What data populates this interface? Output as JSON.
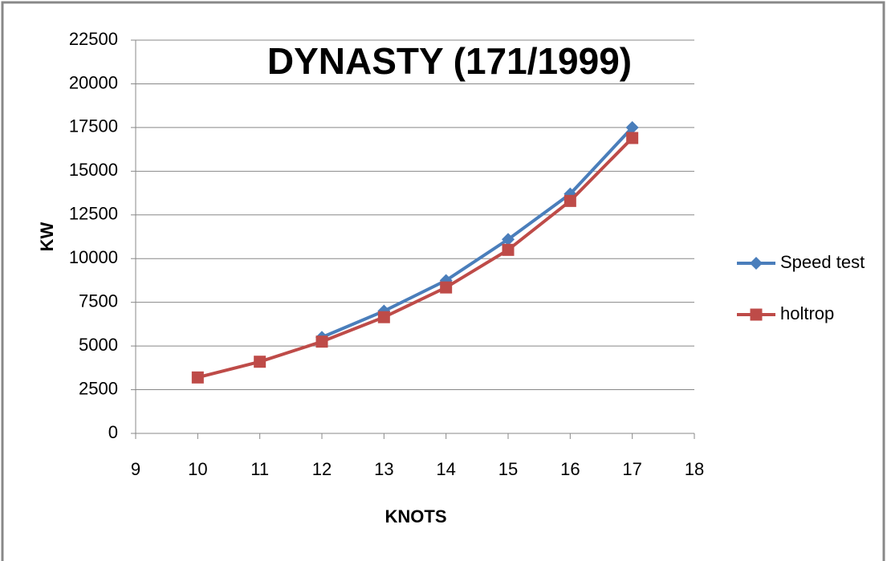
{
  "chart_data": {
    "type": "line",
    "title": "DYNASTY (171/1999)",
    "x_label": "KNOTS",
    "y_label": "KW",
    "x": [
      10,
      11,
      12,
      13,
      14,
      15,
      16,
      17
    ],
    "series": [
      {
        "name": "Speed test",
        "color": "#4a7ebb",
        "marker": "diamond",
        "values": [
          null,
          null,
          5500,
          7000,
          8750,
          11100,
          13700,
          17500
        ]
      },
      {
        "name": "holtrop",
        "color": "#be4b48",
        "marker": "square",
        "values": [
          3200,
          4100,
          5250,
          6650,
          8350,
          10500,
          13300,
          16900
        ]
      }
    ],
    "xlim": [
      9,
      18
    ],
    "xticks": [
      9,
      10,
      11,
      12,
      13,
      14,
      15,
      16,
      17,
      18
    ],
    "ylim": [
      0,
      22500
    ],
    "yticks": [
      0,
      2500,
      5000,
      7500,
      10000,
      12500,
      15000,
      17500,
      20000,
      22500
    ],
    "grid": true,
    "legend": "right"
  }
}
